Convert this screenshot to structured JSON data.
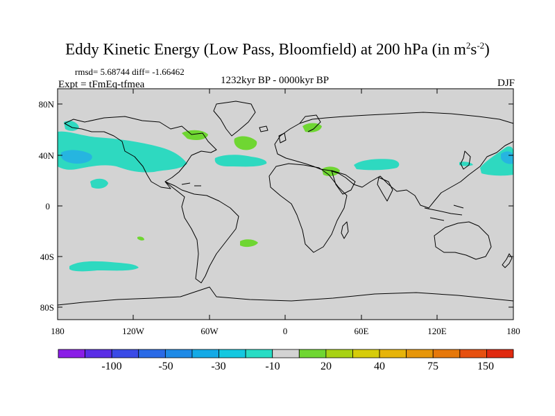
{
  "title": {
    "main": "Eddy Kinetic Energy (Low Pass, Bloomfield) at 200 hPa (in m",
    "sup1": "2",
    "mid": "s",
    "sup2": "-2",
    "end": ")"
  },
  "stats": "rmsd= 5.68744 diff= -1.66462",
  "experiment": "Expt = tFmEq-tfmea",
  "period": "1232kyr BP - 0000kyr BP",
  "season": "DJF",
  "axes": {
    "y_ticks": [
      "80N",
      "40N",
      "0",
      "40S",
      "80S"
    ],
    "x_ticks": [
      "180",
      "120W",
      "60W",
      "0",
      "60E",
      "120E",
      "180"
    ]
  },
  "colors": {
    "land_ocean": "#d3d3d3",
    "coast": "#000000",
    "neg_small": "#2ed9c0",
    "neg_mid": "#26b5e0",
    "pos_small": "#6fd632"
  },
  "colorbar": {
    "colors": [
      "#8a1ee6",
      "#5a2ee6",
      "#3a4ae6",
      "#2a6ae6",
      "#1e8ae6",
      "#14aae6",
      "#14c8e0",
      "#28dcc4",
      "#d3d3d3",
      "#6fd632",
      "#a8d214",
      "#d6cc0a",
      "#e6b40a",
      "#e6960a",
      "#e6780a",
      "#e65010",
      "#e02a10"
    ],
    "labels": [
      "-100",
      "-50",
      "-30",
      "-10",
      "20",
      "40",
      "75",
      "150"
    ]
  }
}
